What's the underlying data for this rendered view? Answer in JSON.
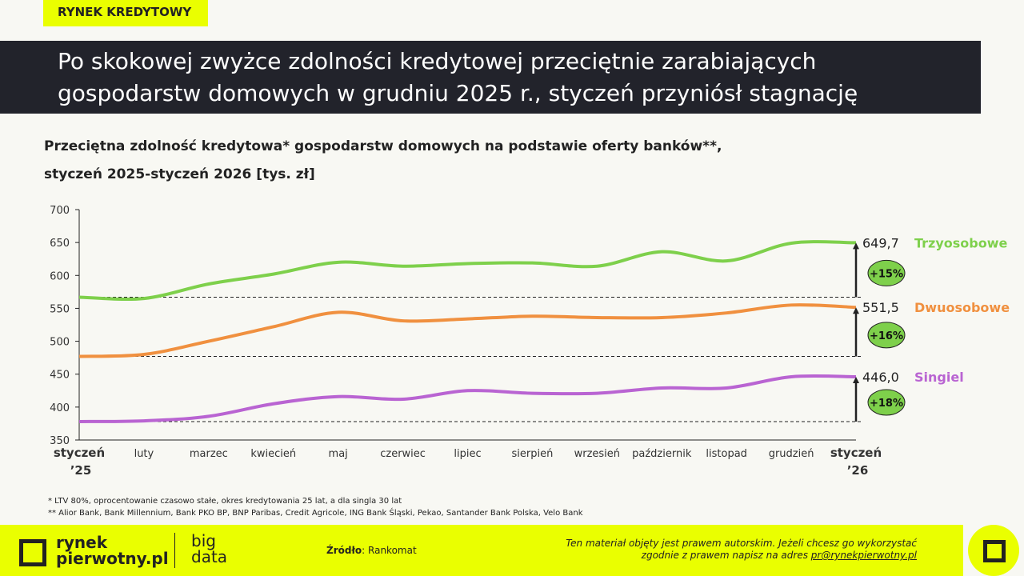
{
  "tag": "RYNEK KREDYTOWY",
  "title_line1": "Po skokowej zwyżce zdolności kredytowej przeciętnie zarabiających",
  "title_line2": "gospodarstw domowych w grudniu 2025 r., styczeń przyniósł stagnację",
  "chart_data": {
    "type": "line",
    "title": "Przeciętna zdolność kredytowa* gospodarstw domowych na podstawie oferty banków**,",
    "subtitle": "styczeń 2025-styczeń 2026 [tys. zł]",
    "categories": [
      "styczeń ’25",
      "luty",
      "marzec",
      "kwiecień",
      "maj",
      "czerwiec",
      "lipiec",
      "sierpień",
      "wrzesień",
      "październik",
      "listopad",
      "grudzień",
      "styczeń ’26"
    ],
    "ylim": [
      350,
      700
    ],
    "yticks": [
      350,
      400,
      450,
      500,
      550,
      600,
      650,
      700
    ],
    "grid": false,
    "series": [
      {
        "name": "Trzyosobowe",
        "color": "#7ed04b",
        "values": [
          567,
          565,
          587,
          602,
          620,
          614,
          618,
          619,
          614,
          636,
          622,
          649,
          649.7
        ],
        "end_label": "649,7",
        "change": "+15%"
      },
      {
        "name": "Dwuosobowe",
        "color": "#f0903f",
        "values": [
          477,
          480,
          500,
          522,
          544,
          531,
          534,
          538,
          536,
          536,
          543,
          555,
          551.5
        ],
        "end_label": "551,5",
        "change": "+16%"
      },
      {
        "name": "Singiel",
        "color": "#b964d2",
        "values": [
          378,
          379,
          386,
          405,
          416,
          412,
          425,
          421,
          421,
          429,
          429,
          446,
          446.0
        ],
        "end_label": "446,0",
        "change": "+18%"
      }
    ]
  },
  "notes": [
    "* LTV 80%, oprocentowanie czasowo stałe, okres kredytowania 25 lat, a dla singla 30 lat",
    "** Alior Bank, Bank Millennium, Bank PKO BP, BNP Paribas, Credit Agricole, ING Bank Śląski, Pekao, Santander Bank Polska, Velo Bank"
  ],
  "footer": {
    "logo1": "rynek",
    "logo2": "pierwotny.pl",
    "big1": "big",
    "big2": "data",
    "source_label": "Źródło",
    "source": ": Rankomat",
    "copy1": "Ten materiał objęty jest prawem autorskim. Jeżeli chcesz go wykorzystać",
    "copy2": "zgodnie z prawem napisz na adres ",
    "email": "pr@rynekpierwotny.pl"
  }
}
